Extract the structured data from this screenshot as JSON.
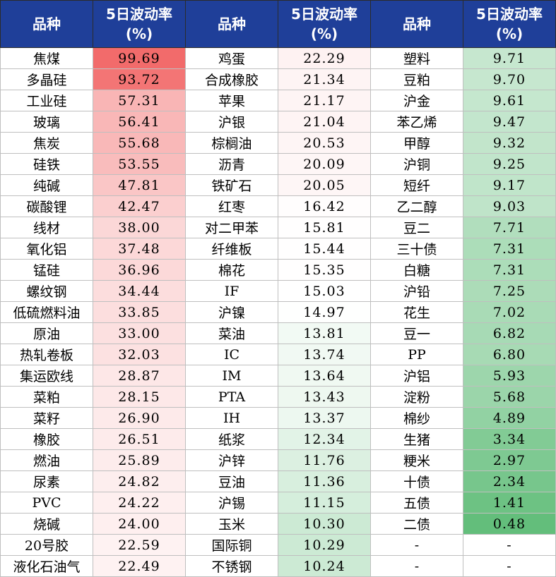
{
  "headers": [
    "品种",
    "5日波动率(%)",
    "品种",
    "5日波动率(%)",
    "品种",
    "5日波动率(%)"
  ],
  "header_lines": {
    "name": "品种",
    "vol_line1": "5日波动率",
    "vol_line2": "(%)"
  },
  "colors": {
    "header_bg": "#1f3f99",
    "high_color": "#f26b6b",
    "low_color": "#63be7b",
    "neutral_color": "#ffffff"
  },
  "rows": [
    {
      "name1": "焦煤",
      "val1": "99.69",
      "name2": "鸡蛋",
      "val2": "22.29",
      "name3": "塑料",
      "val3": "9.71"
    },
    {
      "name1": "多晶硅",
      "val1": "93.72",
      "name2": "合成橡胶",
      "val2": "21.34",
      "name3": "豆粕",
      "val3": "9.70"
    },
    {
      "name1": "工业硅",
      "val1": "57.31",
      "name2": "苹果",
      "val2": "21.17",
      "name3": "沪金",
      "val3": "9.61"
    },
    {
      "name1": "玻璃",
      "val1": "56.41",
      "name2": "沪银",
      "val2": "21.04",
      "name3": "苯乙烯",
      "val3": "9.47"
    },
    {
      "name1": "焦炭",
      "val1": "55.68",
      "name2": "棕榈油",
      "val2": "20.53",
      "name3": "甲醇",
      "val3": "9.32"
    },
    {
      "name1": "硅铁",
      "val1": "53.55",
      "name2": "沥青",
      "val2": "20.09",
      "name3": "沪铜",
      "val3": "9.25"
    },
    {
      "name1": "纯碱",
      "val1": "47.81",
      "name2": "铁矿石",
      "val2": "20.05",
      "name3": "短纤",
      "val3": "9.17"
    },
    {
      "name1": "碳酸锂",
      "val1": "42.47",
      "name2": "红枣",
      "val2": "16.42",
      "name3": "乙二醇",
      "val3": "9.03"
    },
    {
      "name1": "线材",
      "val1": "38.00",
      "name2": "对二甲苯",
      "val2": "15.81",
      "name3": "豆二",
      "val3": "7.71"
    },
    {
      "name1": "氧化铝",
      "val1": "37.48",
      "name2": "纤维板",
      "val2": "15.44",
      "name3": "三十债",
      "val3": "7.31"
    },
    {
      "name1": "锰硅",
      "val1": "36.96",
      "name2": "棉花",
      "val2": "15.35",
      "name3": "白糖",
      "val3": "7.31"
    },
    {
      "name1": "螺纹钢",
      "val1": "34.44",
      "name2": "IF",
      "val2": "15.03",
      "name3": "沪铅",
      "val3": "7.25"
    },
    {
      "name1": "低硫燃料油",
      "val1": "33.85",
      "name2": "沪镍",
      "val2": "14.97",
      "name3": "花生",
      "val3": "7.02"
    },
    {
      "name1": "原油",
      "val1": "33.00",
      "name2": "菜油",
      "val2": "13.81",
      "name3": "豆一",
      "val3": "6.82"
    },
    {
      "name1": "热轧卷板",
      "val1": "32.03",
      "name2": "IC",
      "val2": "13.74",
      "name3": "PP",
      "val3": "6.80"
    },
    {
      "name1": "集运欧线",
      "val1": "28.87",
      "name2": "IM",
      "val2": "13.64",
      "name3": "沪铝",
      "val3": "5.93"
    },
    {
      "name1": "菜粕",
      "val1": "28.15",
      "name2": "PTA",
      "val2": "13.43",
      "name3": "淀粉",
      "val3": "5.68"
    },
    {
      "name1": "菜籽",
      "val1": "26.90",
      "name2": "IH",
      "val2": "13.37",
      "name3": "棉纱",
      "val3": "4.89"
    },
    {
      "name1": "橡胶",
      "val1": "26.51",
      "name2": "纸浆",
      "val2": "12.34",
      "name3": "生猪",
      "val3": "3.34"
    },
    {
      "name1": "燃油",
      "val1": "25.89",
      "name2": "沪锌",
      "val2": "11.76",
      "name3": "粳米",
      "val3": "2.97"
    },
    {
      "name1": "尿素",
      "val1": "24.82",
      "name2": "豆油",
      "val2": "11.36",
      "name3": "十债",
      "val3": "2.34"
    },
    {
      "name1": "PVC",
      "val1": "24.22",
      "name2": "沪锡",
      "val2": "11.15",
      "name3": "五债",
      "val3": "1.41"
    },
    {
      "name1": "烧碱",
      "val1": "24.00",
      "name2": "玉米",
      "val2": "10.30",
      "name3": "二债",
      "val3": "0.48"
    },
    {
      "name1": "20号胶",
      "val1": "22.59",
      "name2": "国际铜",
      "val2": "10.29",
      "name3": "-",
      "val3": "-"
    },
    {
      "name1": "液化石油气",
      "val1": "22.49",
      "name2": "不锈钢",
      "val2": "10.24",
      "name3": "-",
      "val3": "-"
    }
  ]
}
